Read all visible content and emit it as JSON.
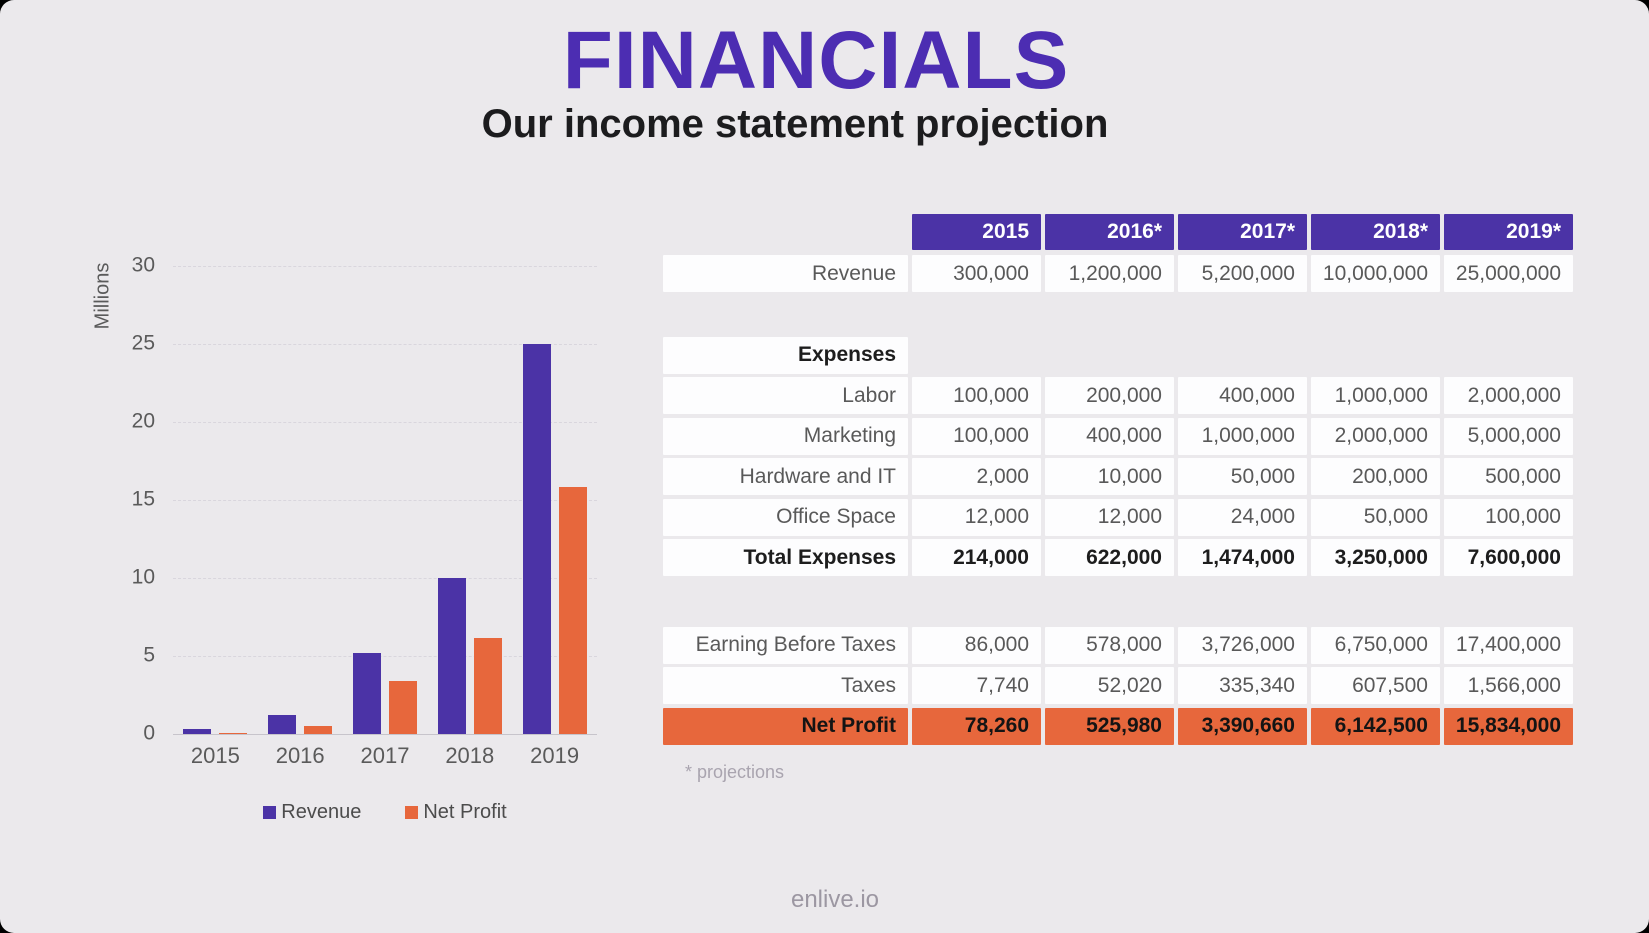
{
  "slide": {
    "title": "FINANCIALS",
    "subtitle": "Our income statement projection",
    "footnote": "* projections",
    "footer": "enlive.io"
  },
  "colors": {
    "background": "#ebe9ec",
    "title_purple": "#4c2db2",
    "purple": "#4b33a6",
    "orange": "#e7673c",
    "cell_white": "#fdfdfe",
    "text_gray": "#595959",
    "text_bold": "#1d1d1d"
  },
  "chart_data": {
    "type": "bar",
    "title": "",
    "categories": [
      "2015",
      "2016",
      "2017",
      "2018",
      "2019"
    ],
    "series": [
      {
        "name": "Revenue",
        "color": "#4b33a6",
        "values": [
          0.3,
          1.2,
          5.2,
          10.0,
          25.0
        ]
      },
      {
        "name": "Net Profit",
        "color": "#e7673c",
        "values": [
          0.078,
          0.526,
          3.391,
          6.143,
          15.834
        ]
      }
    ],
    "xlabel": "",
    "ylabel": "Millions",
    "ylim": [
      0,
      30
    ],
    "yticks": [
      0,
      5,
      10,
      15,
      20,
      25,
      30
    ],
    "grid": true,
    "legend_position": "bottom"
  },
  "table": {
    "header": [
      "2015",
      "2016*",
      "2017*",
      "2018*",
      "2019*"
    ],
    "rows": [
      {
        "label": "Revenue",
        "style": "normal",
        "values": [
          "300,000",
          "1,200,000",
          "5,200,000",
          "10,000,000",
          "25,000,000"
        ]
      },
      {
        "style": "gap"
      },
      {
        "label": "Expenses",
        "style": "section"
      },
      {
        "label": "Labor",
        "style": "normal",
        "values": [
          "100,000",
          "200,000",
          "400,000",
          "1,000,000",
          "2,000,000"
        ]
      },
      {
        "label": "Marketing",
        "style": "normal",
        "values": [
          "100,000",
          "400,000",
          "1,000,000",
          "2,000,000",
          "5,000,000"
        ]
      },
      {
        "label": "Hardware and IT",
        "style": "normal",
        "values": [
          "2,000",
          "10,000",
          "50,000",
          "200,000",
          "500,000"
        ]
      },
      {
        "label": "Office Space",
        "style": "normal",
        "values": [
          "12,000",
          "12,000",
          "24,000",
          "50,000",
          "100,000"
        ]
      },
      {
        "label": "Total Expenses",
        "style": "total",
        "values": [
          "214,000",
          "622,000",
          "1,474,000",
          "3,250,000",
          "7,600,000"
        ]
      },
      {
        "style": "gap"
      },
      {
        "label": "Earning Before Taxes",
        "style": "normal",
        "values": [
          "86,000",
          "578,000",
          "3,726,000",
          "6,750,000",
          "17,400,000"
        ]
      },
      {
        "label": "Taxes",
        "style": "normal",
        "values": [
          "7,740",
          "52,020",
          "335,340",
          "607,500",
          "1,566,000"
        ]
      },
      {
        "label": "Net Profit",
        "style": "netprofit",
        "values": [
          "78,260",
          "525,980",
          "3,390,660",
          "6,142,500",
          "15,834,000"
        ]
      }
    ]
  }
}
